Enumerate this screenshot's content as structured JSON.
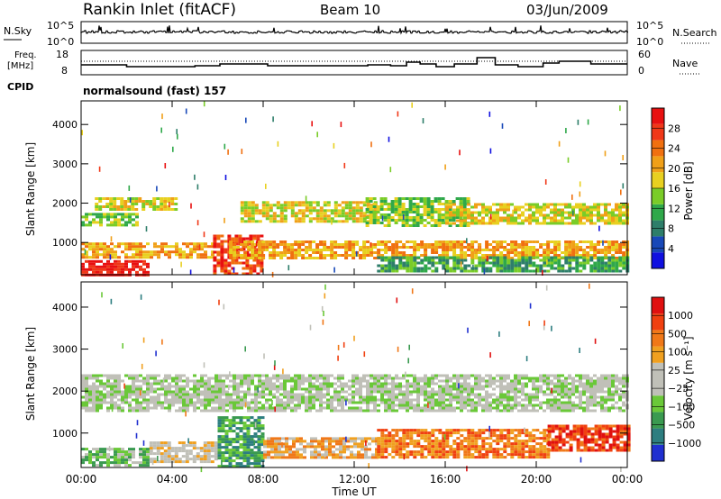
{
  "header": {
    "station": "Rankin Inlet (fitACF)",
    "beam": "Beam 10",
    "date": "03/Jun/2009"
  },
  "top_panels": {
    "nsky_label": "N.Sky",
    "nsearch_label": "N.Search",
    "nsky_scale": [
      "10^5",
      "10^0"
    ],
    "nsearch_scale": [
      "10^5",
      "10^0"
    ],
    "freq_label": "Freq.",
    "freq_unit": "[MHz]",
    "freq_ticks": [
      "18",
      "8"
    ],
    "nave_label": "Nave",
    "nave_ticks": [
      "60",
      "0"
    ],
    "cpid_label": "CPID",
    "cpid_value": "normalsound (fast) 157"
  },
  "colors": {
    "power_scale": [
      "#1010e0",
      "#1848b8",
      "#2e7e6a",
      "#2fa84a",
      "#7acc28",
      "#e8d020",
      "#f0a018",
      "#f07010",
      "#f03818",
      "#e81010"
    ],
    "velocity_scale": [
      "#2030d0",
      "#2d7e80",
      "#3a9a50",
      "#6ac838",
      "#c0c0b8",
      "#c0c0b8",
      "#f0a020",
      "#f07818",
      "#f04010",
      "#e01010"
    ]
  },
  "chart_data": [
    {
      "type": "heatmap",
      "name": "power",
      "ylabel": "Slant Range [km]",
      "colorbar_label": "Power [dB]",
      "colorbar_ticks": [
        "28",
        "24",
        "20",
        "16",
        "12",
        "8",
        "4"
      ],
      "y_ticks": [
        "4000",
        "3000",
        "2000",
        "1000"
      ],
      "ylim": [
        180,
        4600
      ],
      "xlim": [
        0,
        24
      ],
      "bands": [
        {
          "x": [
            0.6,
            4.2
          ],
          "range": [
            1850,
            2150
          ],
          "level": 5
        },
        {
          "x": [
            0.0,
            2.5
          ],
          "range": [
            1450,
            1750
          ],
          "level": 4
        },
        {
          "x": [
            0.0,
            5.8
          ],
          "range": [
            600,
            1000
          ],
          "level": 6
        },
        {
          "x": [
            0.0,
            3.0
          ],
          "range": [
            200,
            550
          ],
          "level": 9
        },
        {
          "x": [
            5.8,
            8.0
          ],
          "range": [
            200,
            1200
          ],
          "level": 8
        },
        {
          "x": [
            6.5,
            24.0
          ],
          "range": [
            600,
            1050
          ],
          "level": 6
        },
        {
          "x": [
            7.0,
            13.0
          ],
          "range": [
            1550,
            2050
          ],
          "level": 5
        },
        {
          "x": [
            12.5,
            17.0
          ],
          "range": [
            1400,
            2150
          ],
          "level": 4
        },
        {
          "x": [
            16.0,
            24.0
          ],
          "range": [
            1500,
            2000
          ],
          "level": 5
        },
        {
          "x": [
            13.0,
            24.0
          ],
          "range": [
            250,
            650
          ],
          "level": 3
        }
      ]
    },
    {
      "type": "heatmap",
      "name": "velocity",
      "ylabel": "Slant Range [km]",
      "xlabel": "Time UT",
      "colorbar_label": "Velocity [m s⁻¹]",
      "colorbar_ticks": [
        "1000",
        "500",
        "100",
        "25",
        "−25",
        "−100",
        "−500",
        "−1000"
      ],
      "y_ticks": [
        "4000",
        "3000",
        "2000",
        "1000"
      ],
      "x_ticks": [
        "00:00",
        "04:00",
        "08:00",
        "12:00",
        "16:00",
        "20:00",
        "00:00"
      ],
      "ylim": [
        180,
        4600
      ],
      "xlim": [
        0,
        24
      ],
      "bands": [
        {
          "x": [
            0.0,
            24.0
          ],
          "range": [
            1500,
            2400
          ],
          "level": 4
        },
        {
          "x": [
            0.0,
            3.0
          ],
          "range": [
            200,
            650
          ],
          "level": 3
        },
        {
          "x": [
            3.0,
            6.0
          ],
          "range": [
            300,
            800
          ],
          "level": 5
        },
        {
          "x": [
            6.0,
            8.0
          ],
          "range": [
            200,
            1400
          ],
          "level": 2
        },
        {
          "x": [
            8.0,
            13.0
          ],
          "range": [
            400,
            900
          ],
          "level": 6
        },
        {
          "x": [
            13.0,
            20.5
          ],
          "range": [
            400,
            1100
          ],
          "level": 7
        },
        {
          "x": [
            20.5,
            24.0
          ],
          "range": [
            600,
            1200
          ],
          "level": 8
        }
      ]
    }
  ]
}
